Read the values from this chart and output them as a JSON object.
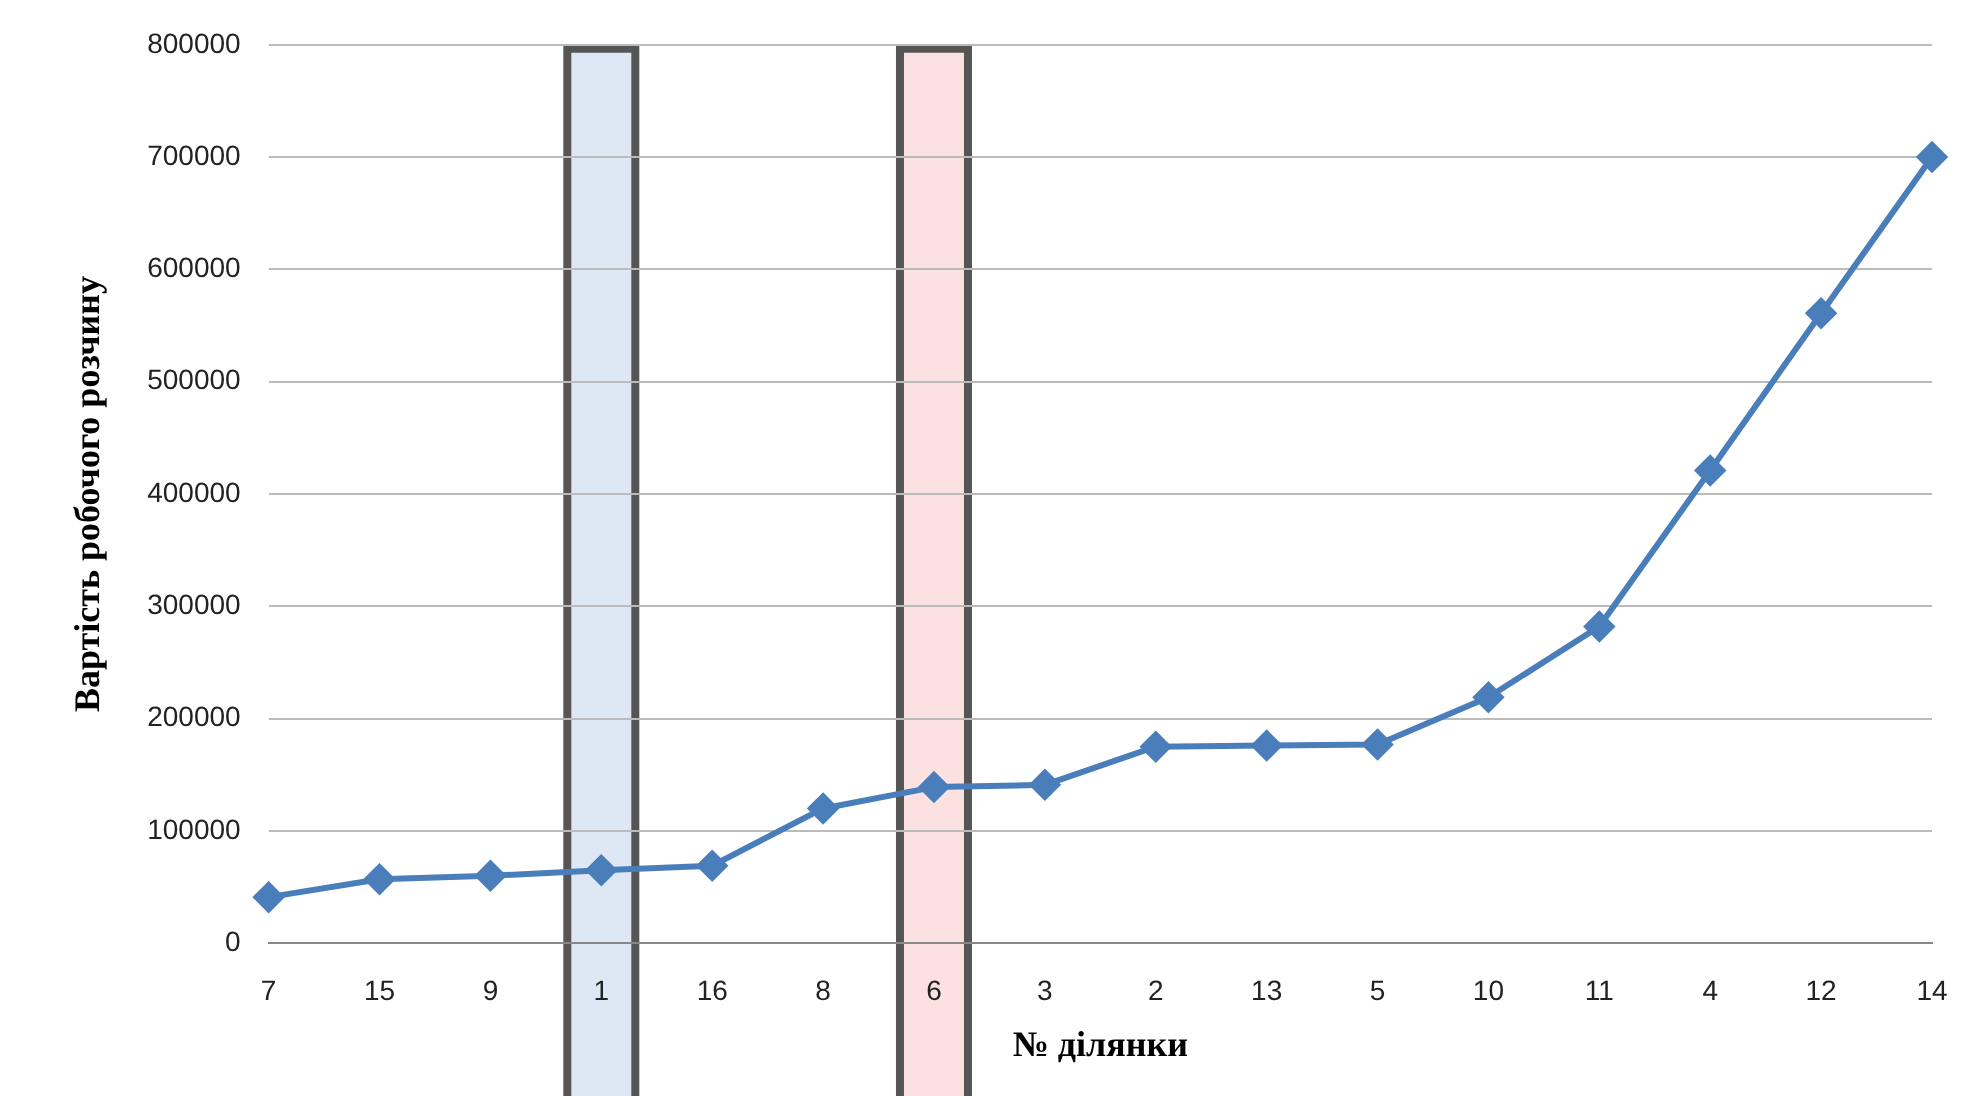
{
  "chart_data": {
    "type": "line",
    "xlabel": "№ ділянки",
    "ylabel": "Вартість робочого розчину",
    "categories": [
      "7",
      "15",
      "9",
      "1",
      "16",
      "8",
      "6",
      "3",
      "2",
      "13",
      "5",
      "10",
      "11",
      "4",
      "12",
      "14"
    ],
    "series": [
      {
        "color": "#4a7ebb",
        "values": [
          41000,
          57000,
          60000,
          65000,
          69000,
          120000,
          139000,
          141000,
          175000,
          176000,
          177000,
          219000,
          282000,
          421000,
          561000,
          700000
        ]
      }
    ],
    "ylim": [
      0,
      800000
    ],
    "yticks": [
      0,
      100000,
      200000,
      300000,
      400000,
      500000,
      600000,
      700000,
      800000
    ],
    "grid": "y",
    "legend": false,
    "marker": "diamond",
    "line_style": "solid",
    "bands": [
      {
        "axis": "x",
        "from": "1",
        "to": "1",
        "color": "#dde8f4"
      },
      {
        "axis": "x",
        "from": "6",
        "to": "6",
        "color": "#fbe1e1"
      }
    ]
  }
}
